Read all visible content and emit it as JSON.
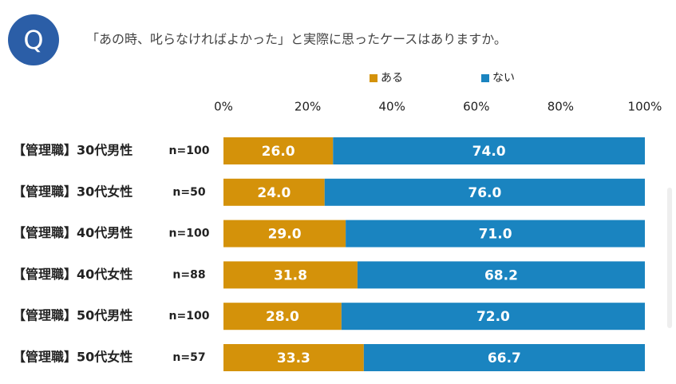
{
  "chart_data": {
    "type": "stacked_bar_horizontal",
    "badge": "Q",
    "title": "「あの時、叱らなければよかった」と実際に思ったケースはありますか。",
    "categories": [
      "【管理職】30代男性",
      "【管理職】30代女性",
      "【管理職】40代男性",
      "【管理職】40代女性",
      "【管理職】50代男性",
      "【管理職】50代女性"
    ],
    "sample_sizes": [
      "n=100",
      "n=50",
      "n=100",
      "n=88",
      "n=100",
      "n=57"
    ],
    "series": [
      {
        "name": "ある",
        "color": "#d4920a",
        "values": [
          26.0,
          24.0,
          29.0,
          31.8,
          28.0,
          33.3
        ],
        "value_labels": [
          "26.0",
          "24.0",
          "29.0",
          "31.8",
          "28.0",
          "33.3"
        ]
      },
      {
        "name": "ない",
        "color": "#1a84c0",
        "values": [
          74.0,
          76.0,
          71.0,
          68.2,
          72.0,
          66.7
        ],
        "value_labels": [
          "74.0",
          "76.0",
          "71.0",
          "68.2",
          "72.0",
          "66.7"
        ]
      }
    ],
    "xlim": [
      0,
      100
    ],
    "xticks": [
      {
        "value": 0,
        "label": "0%"
      },
      {
        "value": 20,
        "label": "20%"
      },
      {
        "value": 40,
        "label": "40%"
      },
      {
        "value": 60,
        "label": "60%"
      },
      {
        "value": 80,
        "label": "80%"
      },
      {
        "value": 100,
        "label": "100%"
      }
    ]
  }
}
